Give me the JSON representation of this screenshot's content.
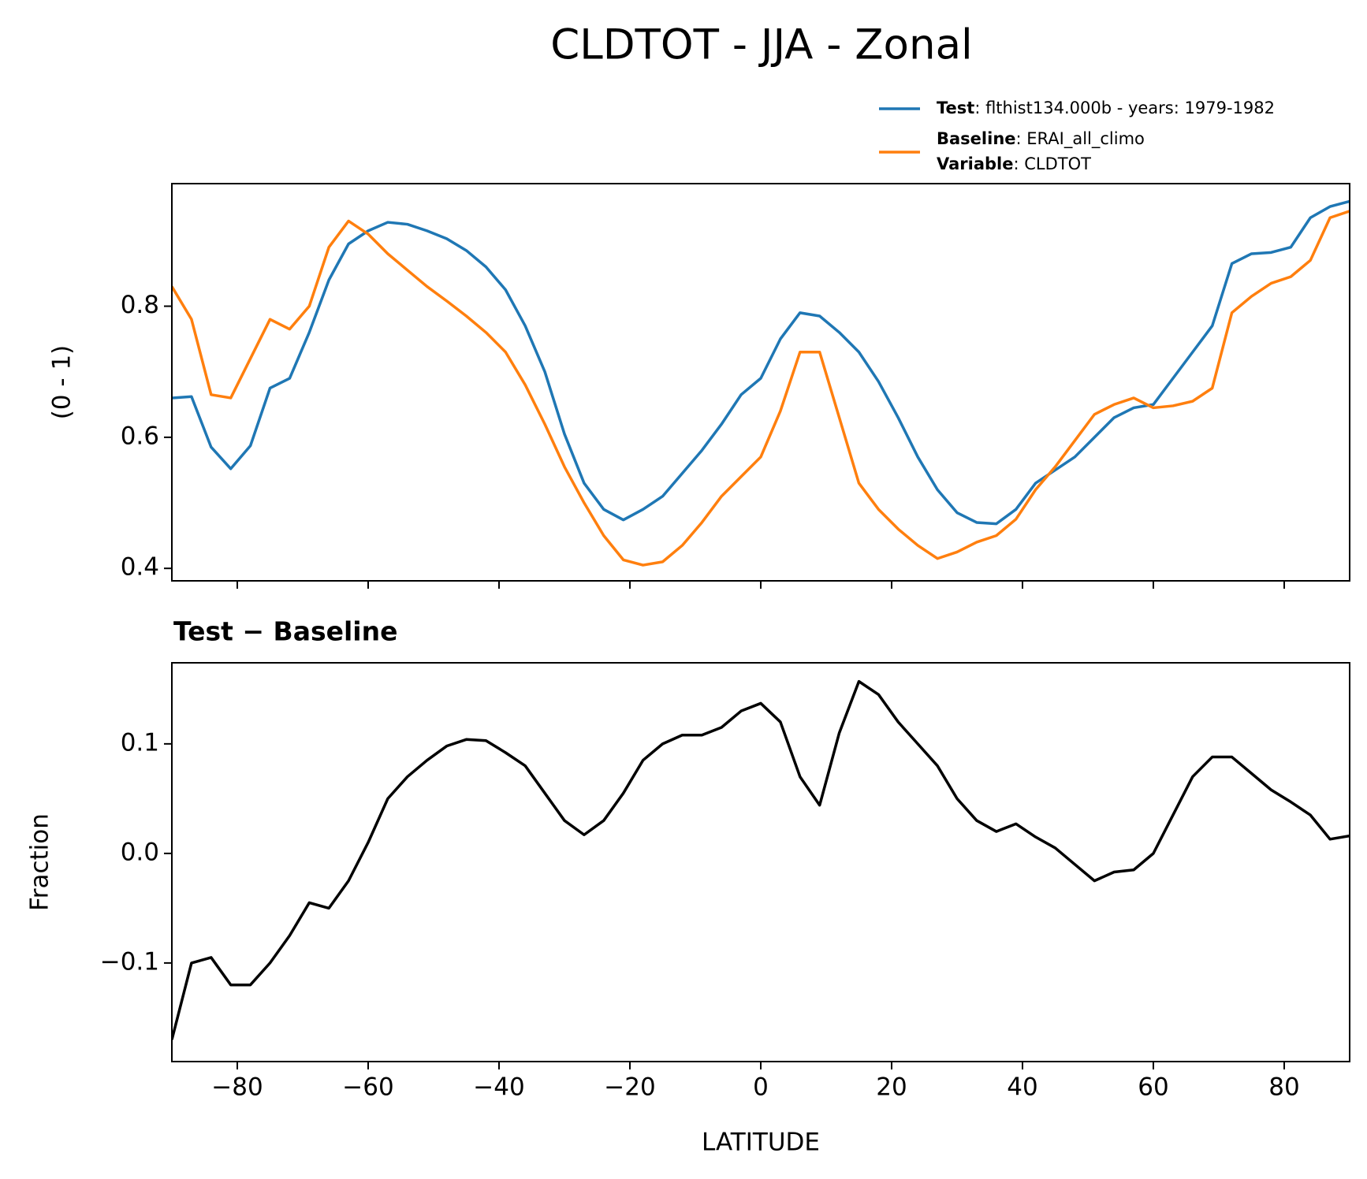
{
  "chart_data": [
    {
      "type": "line",
      "title": "CLDTOT - JJA - Zonal",
      "ylabel": "(0 - 1)",
      "x": [
        -90,
        -87,
        -84,
        -81,
        -78,
        -75,
        -72,
        -69,
        -66,
        -63,
        -60,
        -57,
        -54,
        -51,
        -48,
        -45,
        -42,
        -39,
        -36,
        -33,
        -30,
        -27,
        -24,
        -21,
        -18,
        -15,
        -12,
        -9,
        -6,
        -3,
        0,
        3,
        6,
        9,
        12,
        15,
        18,
        21,
        24,
        27,
        30,
        33,
        36,
        39,
        42,
        45,
        48,
        51,
        54,
        57,
        60,
        63,
        66,
        69,
        72,
        75,
        78,
        81,
        84,
        87,
        90
      ],
      "series": [
        {
          "name": "Test",
          "label": ": flthist134.000b - years: 1979-1982",
          "color": "#1f77b4",
          "values": [
            0.66,
            0.662,
            0.585,
            0.552,
            0.587,
            0.675,
            0.69,
            0.76,
            0.84,
            0.895,
            0.915,
            0.928,
            0.925,
            0.915,
            0.903,
            0.885,
            0.86,
            0.825,
            0.77,
            0.7,
            0.605,
            0.53,
            0.49,
            0.474,
            0.49,
            0.51,
            0.545,
            0.58,
            0.62,
            0.665,
            0.69,
            0.75,
            0.79,
            0.785,
            0.76,
            0.73,
            0.685,
            0.63,
            0.57,
            0.52,
            0.485,
            0.47,
            0.468,
            0.49,
            0.53,
            0.55,
            0.57,
            0.6,
            0.63,
            0.645,
            0.65,
            0.69,
            0.73,
            0.77,
            0.865,
            0.88,
            0.882,
            0.89,
            0.935,
            0.952,
            0.96
          ]
        },
        {
          "name": "Baseline",
          "label": ": ERAI_all_climo",
          "color": "#ff7f0e",
          "values": [
            0.83,
            0.78,
            0.665,
            0.66,
            0.72,
            0.78,
            0.765,
            0.8,
            0.89,
            0.93,
            0.91,
            0.88,
            0.855,
            0.83,
            0.808,
            0.785,
            0.76,
            0.73,
            0.68,
            0.62,
            0.555,
            0.5,
            0.45,
            0.413,
            0.405,
            0.41,
            0.435,
            0.47,
            0.51,
            0.54,
            0.57,
            0.64,
            0.73,
            0.73,
            0.63,
            0.53,
            0.49,
            0.46,
            0.435,
            0.415,
            0.425,
            0.44,
            0.45,
            0.475,
            0.52,
            0.555,
            0.595,
            0.635,
            0.65,
            0.66,
            0.645,
            0.648,
            0.655,
            0.675,
            0.79,
            0.815,
            0.835,
            0.845,
            0.87,
            0.935,
            0.945
          ]
        }
      ],
      "legend_note": {
        "name": "Variable",
        "label": ": CLDTOT"
      },
      "xlim": [
        -90,
        90
      ],
      "xticks": [
        -80,
        -60,
        -40,
        -20,
        0,
        20,
        40,
        60,
        80
      ],
      "ylim": [
        0.381,
        0.987
      ],
      "yticks": [
        0.4,
        0.6,
        0.8
      ]
    },
    {
      "type": "line",
      "title": "Test − Baseline",
      "ylabel": "Fraction",
      "xlabel": "LATITUDE",
      "color": "#000000",
      "x": [
        -90,
        -87,
        -84,
        -81,
        -78,
        -75,
        -72,
        -69,
        -66,
        -63,
        -60,
        -57,
        -54,
        -51,
        -48,
        -45,
        -42,
        -39,
        -36,
        -33,
        -30,
        -27,
        -24,
        -21,
        -18,
        -15,
        -12,
        -9,
        -6,
        -3,
        0,
        3,
        6,
        9,
        12,
        15,
        18,
        21,
        24,
        27,
        30,
        33,
        36,
        39,
        42,
        45,
        48,
        51,
        54,
        57,
        60,
        63,
        66,
        69,
        72,
        75,
        78,
        81,
        84,
        87,
        90
      ],
      "values": [
        -0.17,
        -0.1,
        -0.095,
        -0.12,
        -0.12,
        -0.1,
        -0.075,
        -0.045,
        -0.05,
        -0.025,
        0.01,
        0.05,
        0.07,
        0.085,
        0.098,
        0.104,
        0.103,
        0.092,
        0.08,
        0.055,
        0.03,
        0.017,
        0.03,
        0.055,
        0.085,
        0.1,
        0.108,
        0.108,
        0.115,
        0.13,
        0.137,
        0.12,
        0.07,
        0.044,
        0.11,
        0.157,
        0.145,
        0.12,
        0.1,
        0.08,
        0.05,
        0.03,
        0.02,
        0.027,
        0.015,
        0.005,
        -0.01,
        -0.025,
        -0.017,
        -0.015,
        0,
        0.035,
        0.07,
        0.088,
        0.088,
        0.073,
        0.058,
        0.047,
        0.035,
        0.013,
        0.016
      ],
      "xlim": [
        -90,
        90
      ],
      "xticks": [
        {
          "value": -80,
          "label": "−80"
        },
        {
          "value": -60,
          "label": "−60"
        },
        {
          "value": -40,
          "label": "−40"
        },
        {
          "value": -20,
          "label": "−20"
        },
        0,
        20,
        40,
        60,
        80
      ],
      "ylim": [
        -0.19,
        0.174
      ],
      "yticks": [
        {
          "value": -0.1,
          "label": "−0.1"
        },
        {
          "value": 0,
          "label": "0.0"
        },
        0.1
      ]
    }
  ]
}
